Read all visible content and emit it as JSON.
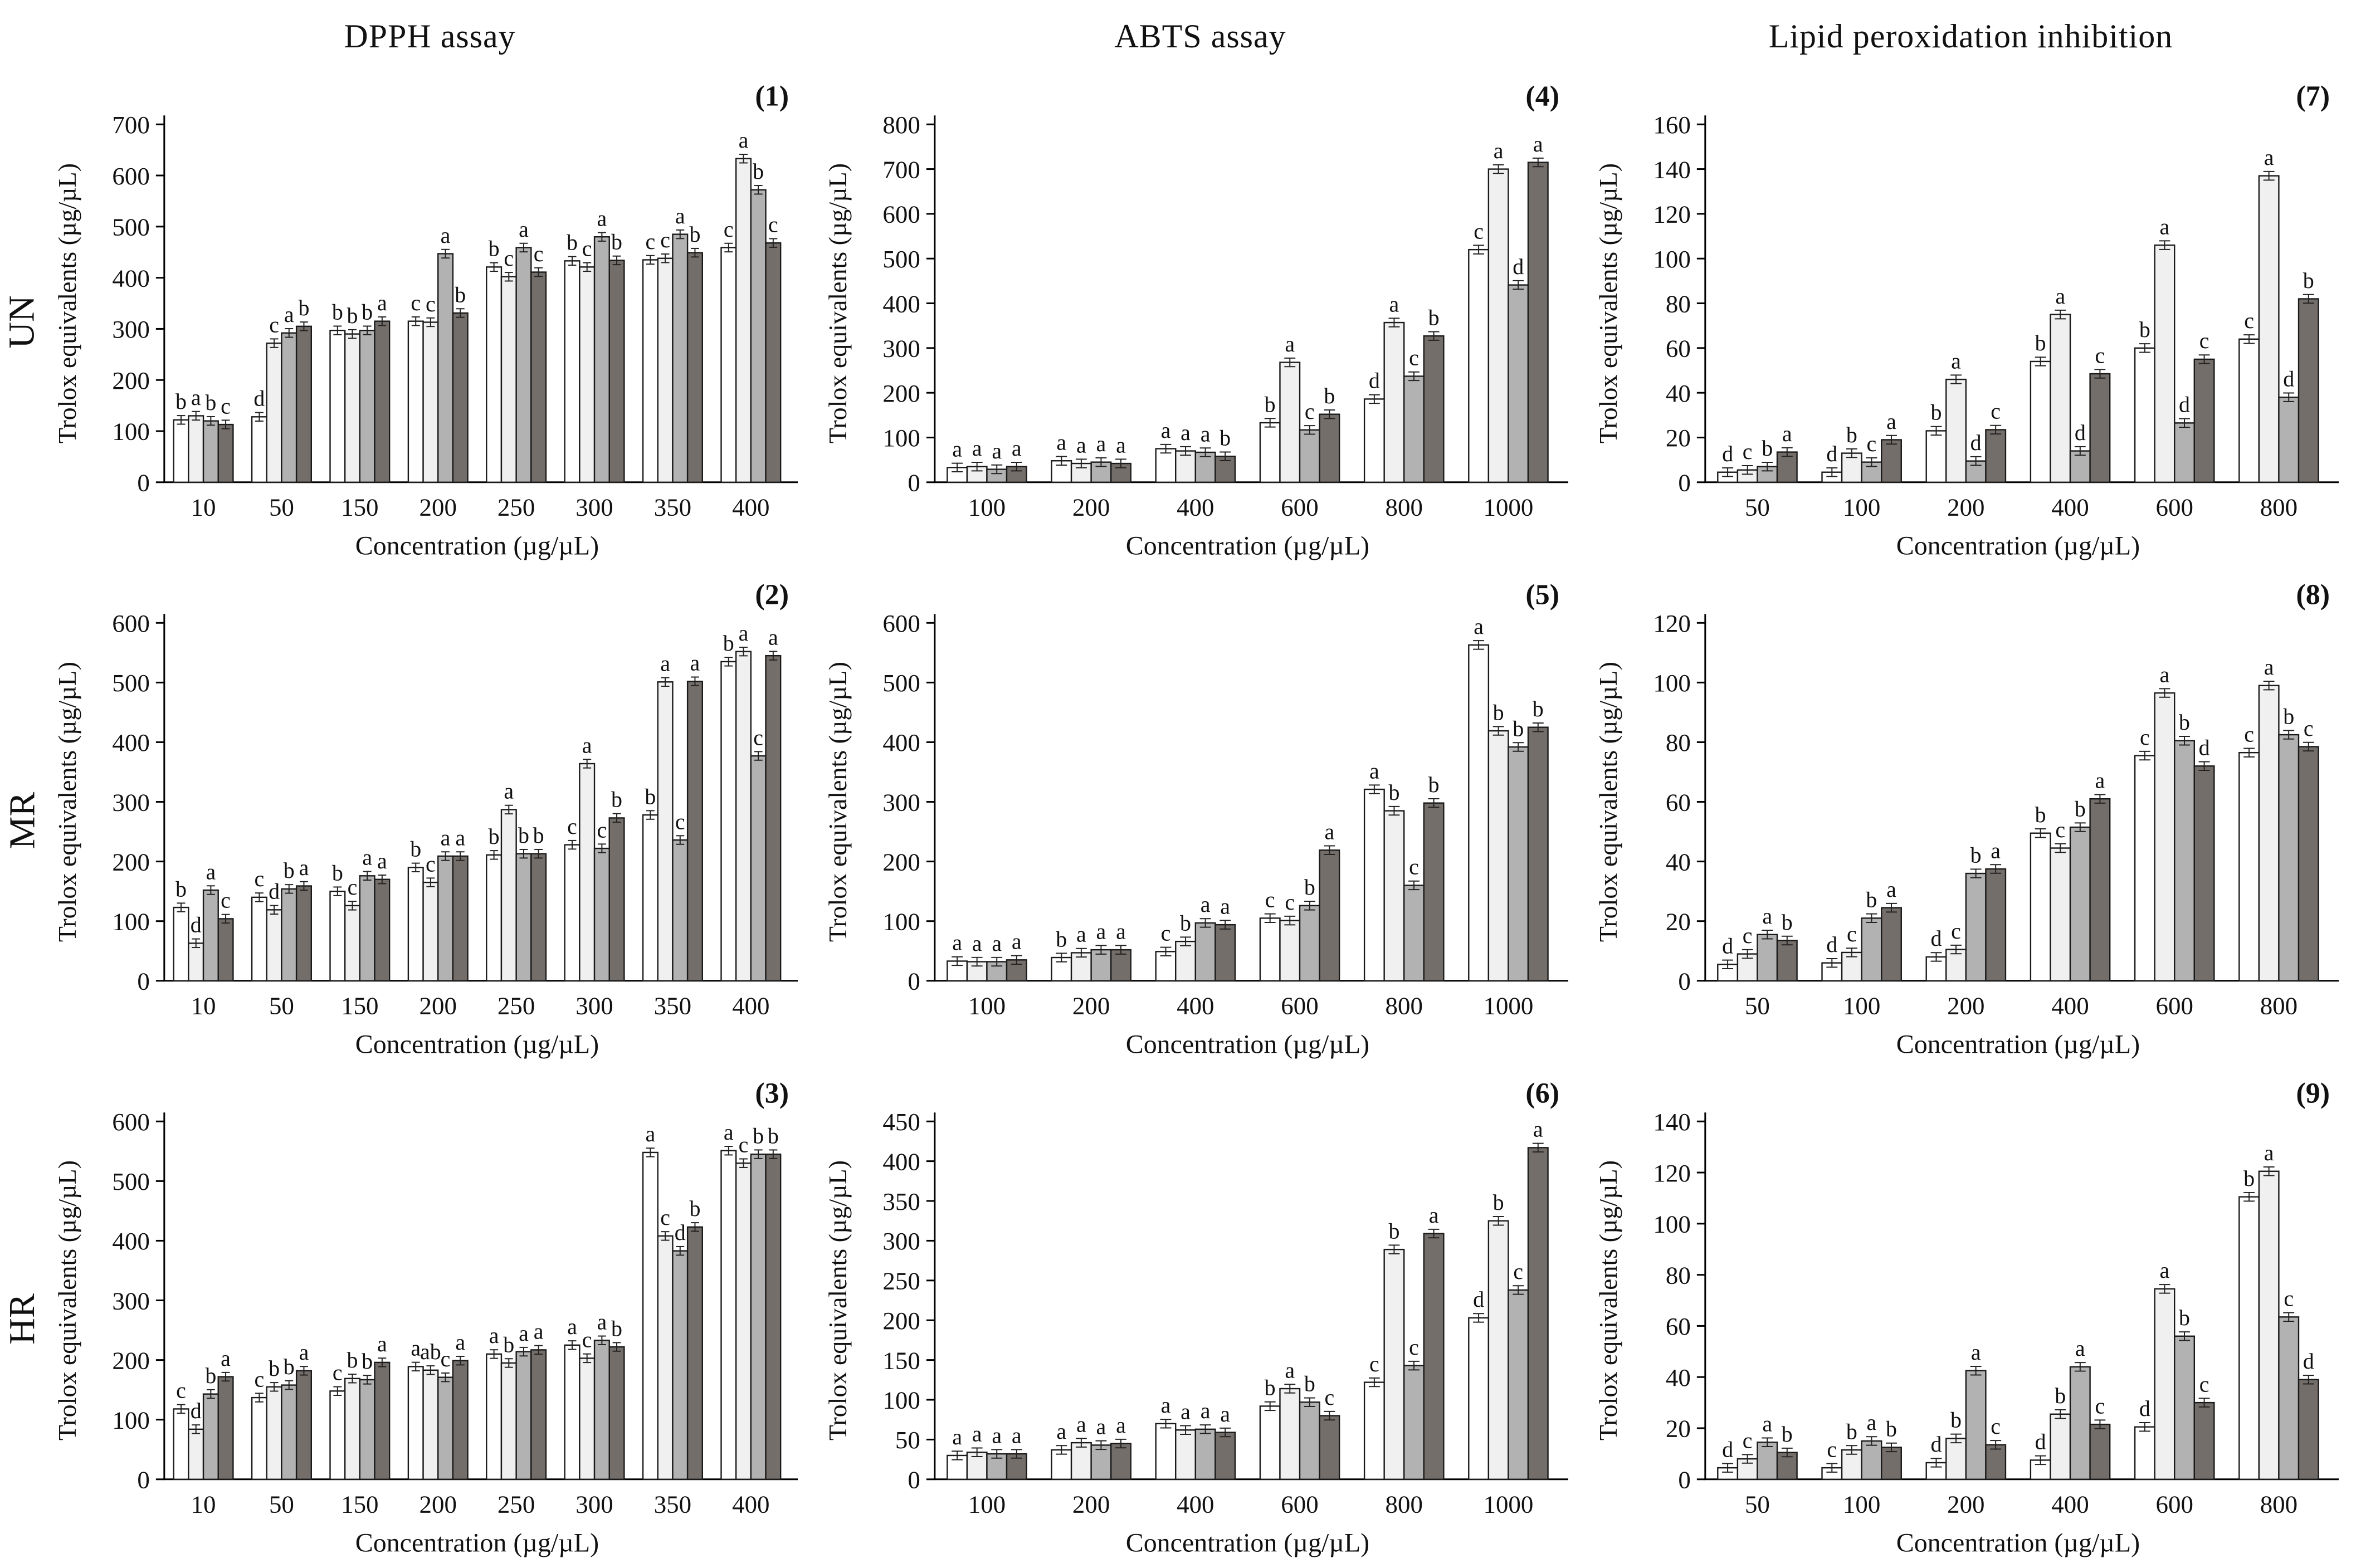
{
  "figure": {
    "column_titles": [
      "DPPH assay",
      "ABTS assay",
      "Lipid peroxidation inhibition"
    ],
    "row_labels": [
      "UN",
      "MR",
      "HR"
    ],
    "series_colors": [
      "#ffffff",
      "#f0f0f0",
      "#b2b2b2",
      "#746e6a"
    ],
    "bar_border_color": "#1a1a1a",
    "background_color": "#ffffff"
  },
  "chart_data": [
    {
      "type": "bar",
      "panel_label": "(1)",
      "row": "UN",
      "assay": "DPPH assay",
      "xlabel": "Concentration (µg/µL)",
      "ylabel": "Trolox equivalents (µg/µL)",
      "ylim": [
        0,
        700
      ],
      "ytick_step": 100,
      "grid": false,
      "legend": "none",
      "categories": [
        "10",
        "50",
        "150",
        "200",
        "250",
        "300",
        "350",
        "400"
      ],
      "series": [
        {
          "name": "bar-white",
          "values": [
            122,
            128,
            297,
            315,
            421,
            433,
            435,
            459
          ],
          "letters": [
            "b",
            "d",
            "b",
            "c",
            "b",
            "b",
            "c",
            "c"
          ]
        },
        {
          "name": "bar-light-gray",
          "values": [
            130,
            272,
            290,
            313,
            402,
            421,
            438,
            633
          ],
          "letters": [
            "a",
            "c",
            "b",
            "c",
            "c",
            "c",
            "c",
            "a"
          ]
        },
        {
          "name": "bar-gray",
          "values": [
            120,
            292,
            297,
            447,
            459,
            480,
            485,
            572
          ],
          "letters": [
            "b",
            "a",
            "b",
            "a",
            "a",
            "a",
            "a",
            "b"
          ]
        },
        {
          "name": "bar-dark-gray",
          "values": [
            113,
            305,
            315,
            331,
            411,
            434,
            449,
            468
          ],
          "letters": [
            "c",
            "b",
            "a",
            "b",
            "c",
            "b",
            "b",
            "c"
          ]
        }
      ]
    },
    {
      "type": "bar",
      "panel_label": "(4)",
      "row": "UN",
      "assay": "ABTS assay",
      "xlabel": "Concentration (µg/µL)",
      "ylabel": "Trolox equivalents (µg/µL)",
      "ylim": [
        0,
        800
      ],
      "ytick_step": 100,
      "grid": false,
      "legend": "none",
      "categories": [
        "100",
        "200",
        "400",
        "600",
        "800",
        "1000"
      ],
      "series": [
        {
          "name": "bar-white",
          "values": [
            33,
            48,
            75,
            133,
            186,
            520
          ],
          "letters": [
            "a",
            "a",
            "a",
            "b",
            "d",
            "c"
          ]
        },
        {
          "name": "bar-light-gray",
          "values": [
            35,
            42,
            70,
            268,
            357,
            700
          ],
          "letters": [
            "a",
            "a",
            "a",
            "a",
            "a",
            "a"
          ]
        },
        {
          "name": "bar-gray",
          "values": [
            29,
            45,
            67,
            117,
            237,
            441
          ],
          "letters": [
            "a",
            "a",
            "a",
            "c",
            "c",
            "d"
          ]
        },
        {
          "name": "bar-dark-gray",
          "values": [
            35,
            42,
            58,
            152,
            327,
            715
          ],
          "letters": [
            "a",
            "a",
            "b",
            "b",
            "b",
            "a"
          ]
        }
      ]
    },
    {
      "type": "bar",
      "panel_label": "(7)",
      "row": "UN",
      "assay": "Lipid peroxidation inhibition",
      "xlabel": "Concentration (µg/µL)",
      "ylabel": "Trolox equivalents (µg/µL)",
      "ylim": [
        0,
        160
      ],
      "ytick_step": 20,
      "grid": false,
      "legend": "none",
      "categories": [
        "50",
        "100",
        "200",
        "400",
        "600",
        "800"
      ],
      "series": [
        {
          "name": "bar-white",
          "values": [
            4.5,
            4.5,
            23,
            54,
            60,
            64
          ],
          "letters": [
            "d",
            "d",
            "b",
            "b",
            "b",
            "c"
          ]
        },
        {
          "name": "bar-light-gray",
          "values": [
            5.5,
            13,
            46,
            75,
            106,
            137
          ],
          "letters": [
            "c",
            "b",
            "a",
            "a",
            "a",
            "a"
          ]
        },
        {
          "name": "bar-gray",
          "values": [
            7,
            9,
            9.5,
            14,
            26.5,
            38
          ],
          "letters": [
            "b",
            "c",
            "d",
            "d",
            "d",
            "d"
          ]
        },
        {
          "name": "bar-dark-gray",
          "values": [
            13.5,
            19,
            23.5,
            48.5,
            55,
            82
          ],
          "letters": [
            "a",
            "a",
            "c",
            "c",
            "c",
            "b"
          ]
        }
      ]
    },
    {
      "type": "bar",
      "panel_label": "(2)",
      "row": "MR",
      "assay": "DPPH assay",
      "xlabel": "Concentration (µg/µL)",
      "ylabel": "Trolox equivalents (µg/µL)",
      "ylim": [
        0,
        600
      ],
      "ytick_step": 100,
      "grid": false,
      "legend": "none",
      "categories": [
        "10",
        "50",
        "150",
        "200",
        "250",
        "300",
        "350",
        "400"
      ],
      "series": [
        {
          "name": "bar-white",
          "values": [
            123,
            140,
            150,
            190,
            211,
            228,
            278,
            535
          ],
          "letters": [
            "b",
            "c",
            "b",
            "b",
            "b",
            "c",
            "b",
            "b"
          ]
        },
        {
          "name": "bar-light-gray",
          "values": [
            63,
            119,
            126,
            165,
            287,
            364,
            501,
            552
          ],
          "letters": [
            "d",
            "d",
            "c",
            "c",
            "a",
            "a",
            "a",
            "a"
          ]
        },
        {
          "name": "bar-gray",
          "values": [
            152,
            154,
            176,
            209,
            213,
            222,
            236,
            377
          ],
          "letters": [
            "a",
            "b",
            "a",
            "a",
            "b",
            "c",
            "c",
            "c"
          ]
        },
        {
          "name": "bar-dark-gray",
          "values": [
            104,
            159,
            170,
            209,
            213,
            273,
            502,
            545
          ],
          "letters": [
            "c",
            "a",
            "a",
            "a",
            "b",
            "b",
            "a",
            "a"
          ]
        }
      ]
    },
    {
      "type": "bar",
      "panel_label": "(5)",
      "row": "MR",
      "assay": "ABTS assay",
      "xlabel": "Concentration (µg/µL)",
      "ylabel": "Trolox equivalents (µg/µL)",
      "ylim": [
        0,
        600
      ],
      "ytick_step": 100,
      "grid": false,
      "legend": "none",
      "categories": [
        "100",
        "200",
        "400",
        "600",
        "800",
        "1000"
      ],
      "series": [
        {
          "name": "bar-white",
          "values": [
            33,
            39,
            49,
            105,
            321,
            563
          ],
          "letters": [
            "a",
            "b",
            "c",
            "c",
            "a",
            "a"
          ]
        },
        {
          "name": "bar-light-gray",
          "values": [
            32,
            47,
            66,
            101,
            285,
            419
          ],
          "letters": [
            "a",
            "a",
            "b",
            "c",
            "b",
            "b"
          ]
        },
        {
          "name": "bar-gray",
          "values": [
            32,
            52,
            97,
            126,
            160,
            392
          ],
          "letters": [
            "a",
            "a",
            "a",
            "b",
            "c",
            "b"
          ]
        },
        {
          "name": "bar-dark-gray",
          "values": [
            35,
            52,
            94,
            219,
            298,
            425
          ],
          "letters": [
            "a",
            "a",
            "a",
            "a",
            "b",
            "b"
          ]
        }
      ]
    },
    {
      "type": "bar",
      "panel_label": "(8)",
      "row": "MR",
      "assay": "Lipid peroxidation inhibition",
      "xlabel": "Concentration (µg/µL)",
      "ylabel": "Trolox equivalents (µg/µL)",
      "ylim": [
        0,
        120
      ],
      "ytick_step": 20,
      "grid": false,
      "legend": "none",
      "categories": [
        "50",
        "100",
        "200",
        "400",
        "600",
        "800"
      ],
      "series": [
        {
          "name": "bar-white",
          "values": [
            5.5,
            6,
            8,
            49.5,
            75.5,
            76.5
          ],
          "letters": [
            "d",
            "d",
            "d",
            "b",
            "c",
            "c"
          ]
        },
        {
          "name": "bar-light-gray",
          "values": [
            9,
            9.5,
            10.5,
            44.5,
            96.5,
            99
          ],
          "letters": [
            "c",
            "c",
            "c",
            "c",
            "a",
            "a"
          ]
        },
        {
          "name": "bar-gray",
          "values": [
            15.5,
            21,
            36,
            51.5,
            80.5,
            82.5
          ],
          "letters": [
            "a",
            "b",
            "b",
            "b",
            "b",
            "b"
          ]
        },
        {
          "name": "bar-dark-gray",
          "values": [
            13.5,
            24.5,
            37.5,
            61,
            72,
            78.5
          ],
          "letters": [
            "b",
            "a",
            "a",
            "a",
            "d",
            "c"
          ]
        }
      ]
    },
    {
      "type": "bar",
      "panel_label": "(3)",
      "row": "HR",
      "assay": "DPPH assay",
      "xlabel": "Concentration (µg/µL)",
      "ylabel": "Trolox equivalents (µg/µL)",
      "ylim": [
        0,
        600
      ],
      "ytick_step": 100,
      "grid": false,
      "legend": "none",
      "categories": [
        "10",
        "50",
        "150",
        "200",
        "250",
        "300",
        "350",
        "400"
      ],
      "series": [
        {
          "name": "bar-white",
          "values": [
            118,
            137,
            148,
            189,
            210,
            225,
            548,
            551
          ],
          "letters": [
            "c",
            "c",
            "c",
            "a",
            "a",
            "a",
            "a",
            "a"
          ]
        },
        {
          "name": "bar-light-gray",
          "values": [
            84,
            155,
            169,
            183,
            195,
            203,
            408,
            530
          ],
          "letters": [
            "d",
            "b",
            "b",
            "ab",
            "b",
            "c",
            "c",
            "c"
          ]
        },
        {
          "name": "bar-gray",
          "values": [
            143,
            158,
            167,
            171,
            214,
            233,
            383,
            545
          ],
          "letters": [
            "b",
            "b",
            "b",
            "c",
            "a",
            "a",
            "d",
            "b"
          ]
        },
        {
          "name": "bar-dark-gray",
          "values": [
            172,
            182,
            196,
            199,
            217,
            222,
            423,
            545
          ],
          "letters": [
            "a",
            "a",
            "a",
            "a",
            "a",
            "b",
            "b",
            "b"
          ]
        }
      ]
    },
    {
      "type": "bar",
      "panel_label": "(6)",
      "row": "HR",
      "assay": "ABTS assay",
      "xlabel": "Concentration (µg/µL)",
      "ylabel": "Trolox equivalents (µg/µL)",
      "ylim": [
        0,
        450
      ],
      "ytick_step": 50,
      "grid": false,
      "legend": "none",
      "categories": [
        "100",
        "200",
        "400",
        "600",
        "800",
        "1000"
      ],
      "series": [
        {
          "name": "bar-white",
          "values": [
            30,
            37,
            70,
            92,
            122,
            203
          ],
          "letters": [
            "a",
            "a",
            "a",
            "b",
            "c",
            "d"
          ]
        },
        {
          "name": "bar-light-gray",
          "values": [
            34,
            46,
            62,
            114,
            289,
            325
          ],
          "letters": [
            "a",
            "a",
            "a",
            "a",
            "b",
            "b"
          ]
        },
        {
          "name": "bar-gray",
          "values": [
            32,
            43,
            63,
            97,
            143,
            238
          ],
          "letters": [
            "a",
            "a",
            "a",
            "b",
            "c",
            "c"
          ]
        },
        {
          "name": "bar-dark-gray",
          "values": [
            32,
            45,
            59,
            80,
            309,
            417
          ],
          "letters": [
            "a",
            "a",
            "a",
            "c",
            "a",
            "a"
          ]
        }
      ]
    },
    {
      "type": "bar",
      "panel_label": "(9)",
      "row": "HR",
      "assay": "Lipid peroxidation inhibition",
      "xlabel": "Concentration (µg/µL)",
      "ylabel": "Trolox equivalents (µg/µL)",
      "ylim": [
        0,
        140
      ],
      "ytick_step": 20,
      "grid": false,
      "legend": "none",
      "categories": [
        "50",
        "100",
        "200",
        "400",
        "600",
        "800"
      ],
      "series": [
        {
          "name": "bar-white",
          "values": [
            4.5,
            4.5,
            6.5,
            7.5,
            20.5,
            110.5
          ],
          "letters": [
            "d",
            "c",
            "d",
            "d",
            "d",
            "b"
          ]
        },
        {
          "name": "bar-light-gray",
          "values": [
            8,
            11.5,
            16,
            25.5,
            74.5,
            120.5
          ],
          "letters": [
            "c",
            "b",
            "b",
            "b",
            "a",
            "a"
          ]
        },
        {
          "name": "bar-gray",
          "values": [
            14.5,
            15,
            42.5,
            44,
            56,
            63.5
          ],
          "letters": [
            "a",
            "a",
            "a",
            "a",
            "b",
            "c"
          ]
        },
        {
          "name": "bar-dark-gray",
          "values": [
            10.5,
            12.5,
            13.5,
            21.5,
            30,
            39
          ],
          "letters": [
            "b",
            "b",
            "c",
            "c",
            "c",
            "d"
          ]
        }
      ]
    }
  ]
}
